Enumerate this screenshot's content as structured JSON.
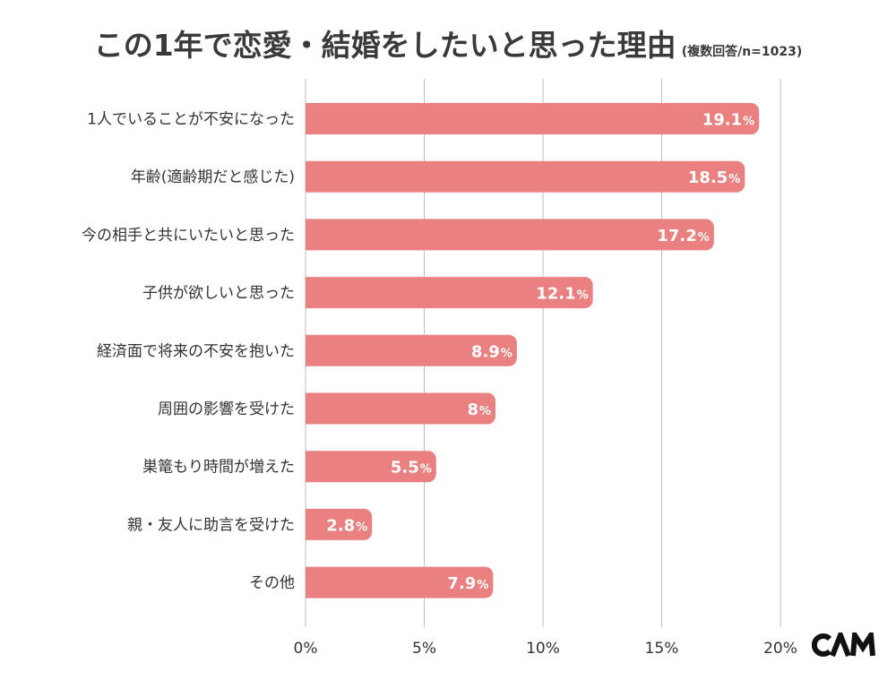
{
  "header": {
    "title": "この1年で恋愛・結婚をしたいと思った理由",
    "subtitle": "(複数回答/n=1023)"
  },
  "brand": {
    "logo_text": "CAM"
  },
  "colors": {
    "bar": "#ea8080",
    "grid": "#bdbdbd",
    "text": "#3a3a3a"
  },
  "chart_data": {
    "type": "bar",
    "orientation": "horizontal",
    "categories": [
      "1人でいることが不安になった",
      "年齢(適齢期だと感じた)",
      "今の相手と共にいたいと思った",
      "子供が欲しいと思った",
      "経済面で将来の不安を抱いた",
      "周囲の影響を受けた",
      "巣篭もり時間が増えた",
      "親・友人に助言を受けた",
      "その他"
    ],
    "values": [
      19.1,
      18.5,
      17.2,
      12.1,
      8.9,
      8,
      5.5,
      2.8,
      7.9
    ],
    "value_unit": "%",
    "xlim": [
      0,
      20
    ],
    "xticks": [
      0,
      5,
      10,
      15,
      20
    ],
    "xtick_labels": [
      "0%",
      "5%",
      "10%",
      "15%",
      "20%"
    ],
    "grid": true,
    "legend": "none"
  }
}
